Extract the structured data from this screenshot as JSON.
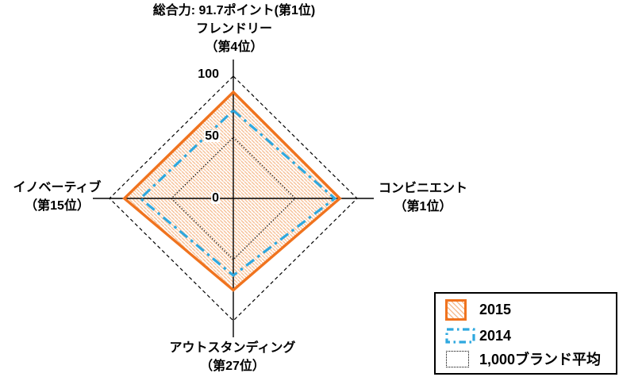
{
  "colors": {
    "background": "#FFFFFF",
    "axis": "#000000",
    "gridline": "#000000",
    "hatch": "#F6BE93"
  },
  "chart_data": {
    "type": "radar",
    "title": "総合力: 91.7ポイント(第1位)",
    "overall_score": 91.7,
    "overall_rank_label": "第1位",
    "axis_range": [
      0,
      100
    ],
    "axis_ticks": [
      0,
      50,
      100
    ],
    "grid": "diamond, dashed outer ring at 100, axes cross at center",
    "legend_position": "bottom-right box",
    "categories": [
      {
        "position": "top",
        "label": "フレンドリー",
        "rank": "（第4位）"
      },
      {
        "position": "right",
        "label": "コンビニエント",
        "rank": "（第1位）"
      },
      {
        "position": "bottom",
        "label": "アウトスタンディング",
        "rank": "（第27位）"
      },
      {
        "position": "left",
        "label": "イノベーティブ",
        "rank": "（第15位）"
      }
    ],
    "series": [
      {
        "name": "2015",
        "values": [
          87,
          86,
          75,
          88
        ],
        "line_style": "solid",
        "fill": "diagonal-hatch",
        "color": "#F0731E"
      },
      {
        "name": "2014",
        "values": [
          72,
          82,
          63,
          75
        ],
        "line_style": "dash-dot",
        "fill": "none",
        "color": "#2EA8DF"
      },
      {
        "name": "1,000ブランド平均",
        "values": [
          50,
          50,
          50,
          50
        ],
        "line_style": "dotted",
        "fill": "none",
        "color": "#000000"
      }
    ]
  }
}
